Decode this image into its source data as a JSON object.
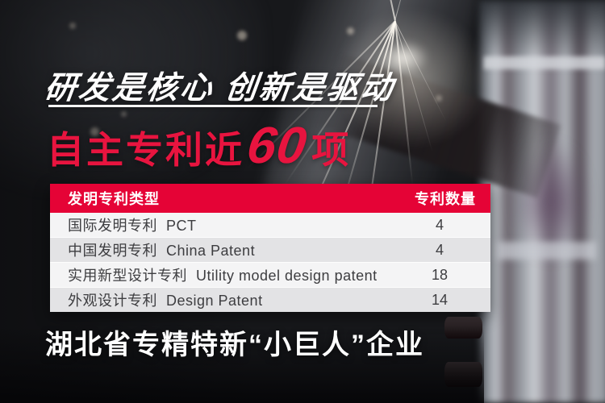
{
  "page": {
    "title": "研发是核心 创新是驱动",
    "headline": {
      "prefix": "自主专利近",
      "number": "60",
      "suffix": "项"
    },
    "patent_table": {
      "columns": {
        "type": "发明专利类型",
        "count": "专利数量"
      },
      "rows": [
        {
          "name": "国际发明专利  PCT",
          "count": "4"
        },
        {
          "name": "中国发明专利  China Patent",
          "count": "4"
        },
        {
          "name": "实用新型设计专利  Utility model design patent",
          "count": "18"
        },
        {
          "name": "外观设计专利  Design Patent",
          "count": "14"
        }
      ]
    },
    "footer": "湖北省专精特新“小巨人”企业",
    "colors": {
      "table_header_red": "#e50336",
      "headline_red": "#e8143f"
    }
  },
  "chart_data": {
    "type": "table",
    "title": "自主专利近60项",
    "columns": [
      "发明专利类型",
      "专利数量"
    ],
    "categories": [
      "国际发明专利 PCT",
      "中国发明专利 China Patent",
      "实用新型设计专利 Utility model design patent",
      "外观设计专利 Design Patent"
    ],
    "values": [
      4,
      4,
      18,
      14
    ],
    "annotations": [
      "研发是核心 创新是驱动",
      "湖北省专精特新“小巨人”企业"
    ]
  }
}
